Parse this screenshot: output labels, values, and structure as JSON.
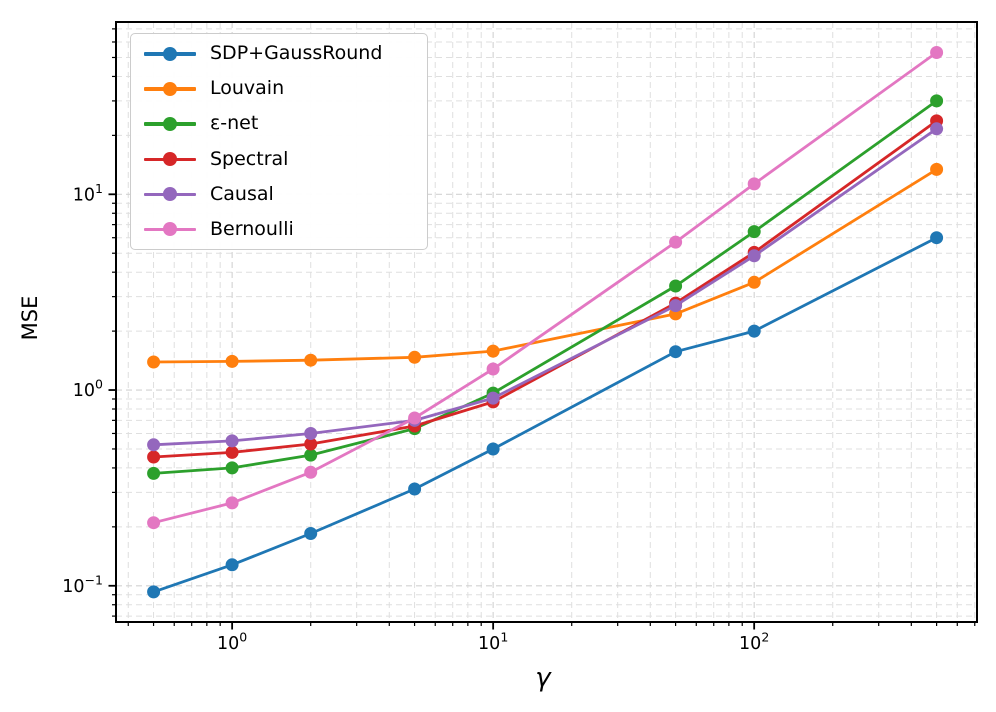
{
  "chart_data": {
    "type": "line",
    "title": "",
    "xlabel": "γ",
    "ylabel": "MSE",
    "xscale": "log",
    "yscale": "log",
    "grid": "major+minor dashed",
    "legend_position": "upper left",
    "x": [
      0.5,
      1,
      2,
      5,
      10,
      50,
      100,
      500
    ],
    "series": [
      {
        "name": "SDP+GaussRound",
        "color": "#1f77b4",
        "values": [
          0.093,
          0.128,
          0.185,
          0.312,
          0.5,
          1.57,
          2.0,
          6.0
        ]
      },
      {
        "name": "Louvain",
        "color": "#ff7f0e",
        "values": [
          1.39,
          1.4,
          1.42,
          1.47,
          1.58,
          2.45,
          3.55,
          13.4
        ]
      },
      {
        "name": "ε-net",
        "color": "#2ca02c",
        "values": [
          0.375,
          0.4,
          0.465,
          0.635,
          0.965,
          3.4,
          6.45,
          30.0
        ]
      },
      {
        "name": "Spectral",
        "color": "#d62728",
        "values": [
          0.455,
          0.48,
          0.53,
          0.655,
          0.87,
          2.78,
          5.05,
          23.7
        ]
      },
      {
        "name": "Causal",
        "color": "#9467bd",
        "values": [
          0.525,
          0.55,
          0.6,
          0.7,
          0.91,
          2.7,
          4.85,
          21.6
        ]
      },
      {
        "name": "Bernoulli",
        "color": "#e377c2",
        "values": [
          0.21,
          0.265,
          0.38,
          0.72,
          1.28,
          5.7,
          11.3,
          53.0
        ]
      }
    ],
    "xlim": [
      0.359,
      714
    ],
    "ylim": [
      0.0653,
      75.9
    ],
    "x_ticks": [
      {
        "value": 1,
        "base": "10",
        "exp": "0"
      },
      {
        "value": 10,
        "base": "10",
        "exp": "1"
      },
      {
        "value": 100,
        "base": "10",
        "exp": "2"
      }
    ],
    "y_ticks": [
      {
        "value": 0.1,
        "base": "10",
        "exp": "−1"
      },
      {
        "value": 1,
        "base": "10",
        "exp": "0"
      },
      {
        "value": 10,
        "base": "10",
        "exp": "1"
      }
    ],
    "colors": {
      "spine": "#000000",
      "grid_major": "#d2d2d2",
      "grid_minor": "#dfdfdf",
      "background": "#ffffff"
    }
  }
}
